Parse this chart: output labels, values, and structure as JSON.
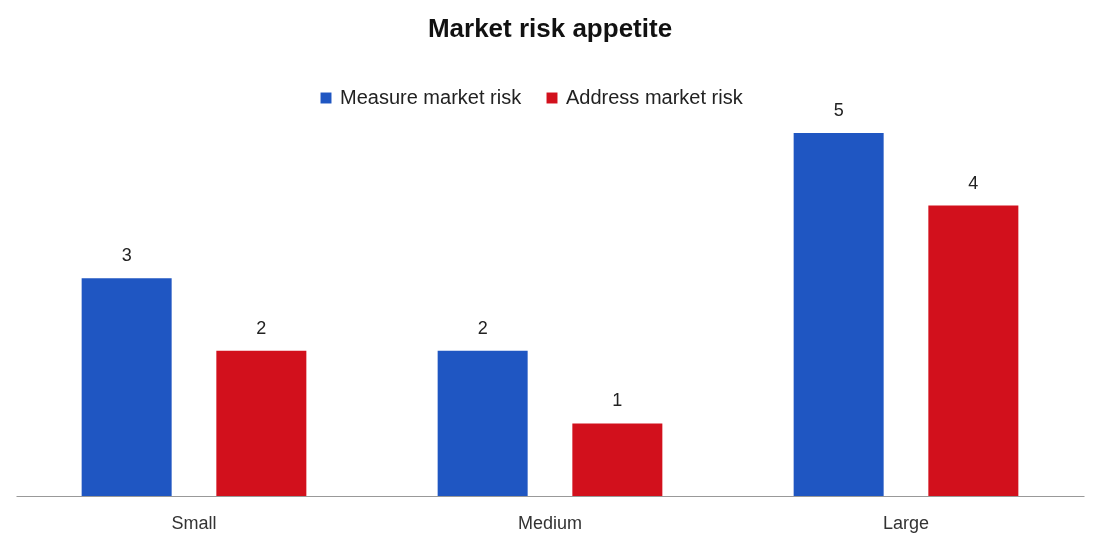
{
  "chart_data": {
    "type": "bar",
    "title": "Market risk appetite",
    "categories": [
      "Small",
      "Medium",
      "Large"
    ],
    "series": [
      {
        "name": "Measure market risk",
        "color": "#1f56c2",
        "values": [
          3,
          2,
          5
        ]
      },
      {
        "name": "Address market risk",
        "color": "#d2101c",
        "values": [
          2,
          1,
          4
        ]
      }
    ],
    "data_labels": true,
    "legend": "top",
    "grid": false
  }
}
